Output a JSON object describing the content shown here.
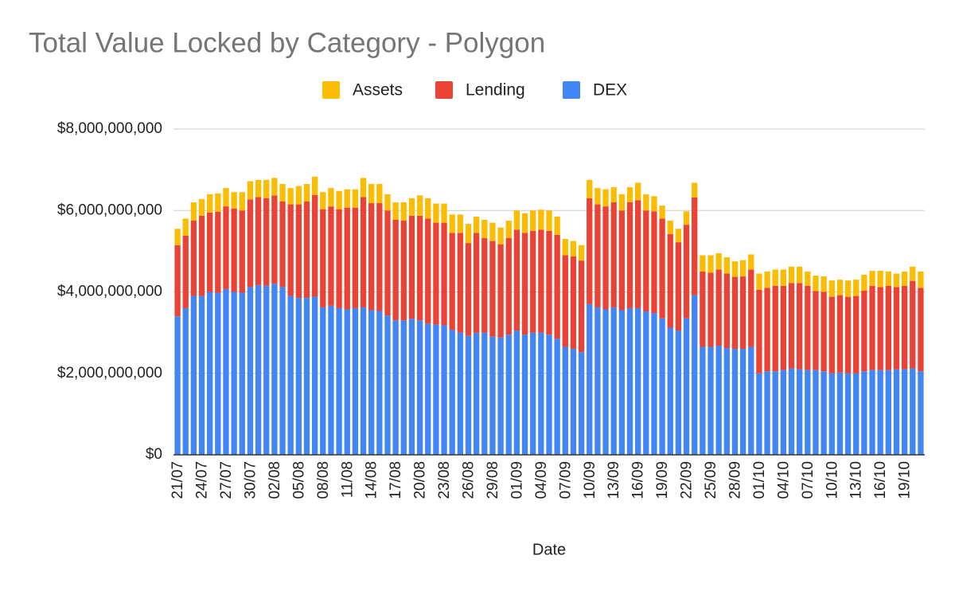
{
  "chart_data": {
    "type": "stacked_bar",
    "title": "Total Value Locked by Category - Polygon",
    "x_label": "Date",
    "categories": [
      "21/07",
      null,
      null,
      "24/07",
      null,
      null,
      "27/07",
      null,
      null,
      "30/07",
      null,
      null,
      "02/08",
      null,
      null,
      "05/08",
      null,
      null,
      "08/08",
      null,
      null,
      "11/08",
      null,
      null,
      "14/08",
      null,
      null,
      "17/08",
      null,
      null,
      "20/08",
      null,
      null,
      "23/08",
      null,
      null,
      "26/08",
      null,
      null,
      "29/08",
      null,
      null,
      "01/09",
      null,
      null,
      "04/09",
      null,
      null,
      "07/09",
      null,
      null,
      "10/09",
      null,
      null,
      "13/09",
      null,
      null,
      "16/09",
      null,
      null,
      "19/09",
      null,
      null,
      "22/09",
      null,
      null,
      "25/09",
      null,
      null,
      "28/09",
      null,
      null,
      "01/10",
      null,
      null,
      "04/10",
      null,
      null,
      "07/10",
      null,
      null,
      "10/10",
      null,
      null,
      "13/10",
      null,
      null,
      "16/10",
      null,
      null,
      "19/10",
      null,
      null
    ],
    "series": [
      {
        "name": "Assets",
        "color": "#fbbc04",
        "values": [
          400000000,
          420000000,
          450000000,
          410000000,
          450000000,
          450000000,
          450000000,
          400000000,
          450000000,
          450000000,
          420000000,
          450000000,
          430000000,
          430000000,
          400000000,
          450000000,
          430000000,
          450000000,
          420000000,
          450000000,
          450000000,
          450000000,
          450000000,
          470000000,
          470000000,
          470000000,
          400000000,
          430000000,
          450000000,
          430000000,
          500000000,
          500000000,
          470000000,
          470000000,
          450000000,
          450000000,
          470000000,
          400000000,
          450000000,
          450000000,
          410000000,
          430000000,
          470000000,
          480000000,
          500000000,
          490000000,
          500000000,
          450000000,
          400000000,
          380000000,
          380000000,
          450000000,
          400000000,
          420000000,
          370000000,
          400000000,
          370000000,
          430000000,
          400000000,
          370000000,
          320000000,
          330000000,
          330000000,
          330000000,
          360000000,
          400000000,
          430000000,
          400000000,
          400000000,
          380000000,
          400000000,
          370000000,
          400000000,
          400000000,
          400000000,
          400000000,
          400000000,
          400000000,
          350000000,
          380000000,
          380000000,
          400000000,
          380000000,
          400000000,
          400000000,
          390000000,
          370000000,
          400000000,
          350000000,
          330000000,
          350000000,
          350000000,
          400000000
        ]
      },
      {
        "name": "Lending",
        "color": "#ea4335",
        "values": [
          1750000000,
          1780000000,
          1850000000,
          1970000000,
          1950000000,
          1990000000,
          2030000000,
          2050000000,
          2020000000,
          2150000000,
          2160000000,
          2150000000,
          2170000000,
          2100000000,
          2250000000,
          2300000000,
          2370000000,
          2500000000,
          2410000000,
          2440000000,
          2430000000,
          2500000000,
          2470000000,
          2710000000,
          2630000000,
          2650000000,
          2580000000,
          2470000000,
          2450000000,
          2530000000,
          2570000000,
          2580000000,
          2500000000,
          2520000000,
          2380000000,
          2450000000,
          2280000000,
          2450000000,
          2320000000,
          2350000000,
          2290000000,
          2370000000,
          2480000000,
          2500000000,
          2500000000,
          2530000000,
          2550000000,
          2550000000,
          2250000000,
          2270000000,
          2250000000,
          2600000000,
          2530000000,
          2530000000,
          2580000000,
          2450000000,
          2600000000,
          2650000000,
          2480000000,
          2500000000,
          2450000000,
          2300000000,
          2170000000,
          2300000000,
          2400000000,
          1850000000,
          1820000000,
          1870000000,
          1830000000,
          1770000000,
          1780000000,
          1900000000,
          2050000000,
          2050000000,
          2100000000,
          2070000000,
          2100000000,
          2120000000,
          2070000000,
          1940000000,
          1950000000,
          1880000000,
          1900000000,
          1880000000,
          1900000000,
          1980000000,
          2070000000,
          2040000000,
          2070000000,
          2020000000,
          2050000000,
          2150000000,
          2050000000
        ]
      },
      {
        "name": "DEX",
        "color": "#4285f4",
        "values": [
          3400000000,
          3600000000,
          3900000000,
          3900000000,
          4000000000,
          3980000000,
          4070000000,
          4000000000,
          3980000000,
          4120000000,
          4170000000,
          4150000000,
          4200000000,
          4120000000,
          3900000000,
          3850000000,
          3850000000,
          3880000000,
          3620000000,
          3660000000,
          3600000000,
          3570000000,
          3600000000,
          3620000000,
          3550000000,
          3530000000,
          3420000000,
          3300000000,
          3300000000,
          3340000000,
          3300000000,
          3220000000,
          3200000000,
          3180000000,
          3070000000,
          3000000000,
          2920000000,
          3000000000,
          3000000000,
          2900000000,
          2880000000,
          2950000000,
          3050000000,
          2950000000,
          3000000000,
          3000000000,
          2950000000,
          2850000000,
          2650000000,
          2600000000,
          2520000000,
          3700000000,
          3620000000,
          3570000000,
          3620000000,
          3550000000,
          3600000000,
          3600000000,
          3520000000,
          3480000000,
          3350000000,
          3120000000,
          3050000000,
          3350000000,
          3920000000,
          2650000000,
          2650000000,
          2680000000,
          2620000000,
          2600000000,
          2600000000,
          2650000000,
          2000000000,
          2050000000,
          2050000000,
          2080000000,
          2120000000,
          2100000000,
          2080000000,
          2080000000,
          2050000000,
          2000000000,
          2020000000,
          2000000000,
          2000000000,
          2050000000,
          2080000000,
          2080000000,
          2080000000,
          2100000000,
          2100000000,
          2120000000,
          2050000000
        ]
      }
    ],
    "ylim": [
      0,
      8000000000
    ],
    "yticks": [
      {
        "value": 0,
        "label": "$0"
      },
      {
        "value": 2000000000,
        "label": "$2,000,000,000"
      },
      {
        "value": 4000000000,
        "label": "$4,000,000,000"
      },
      {
        "value": 6000000000,
        "label": "$6,000,000,000"
      },
      {
        "value": 8000000000,
        "label": "$8,000,000,000"
      }
    ],
    "grid": true,
    "legend": "top"
  }
}
